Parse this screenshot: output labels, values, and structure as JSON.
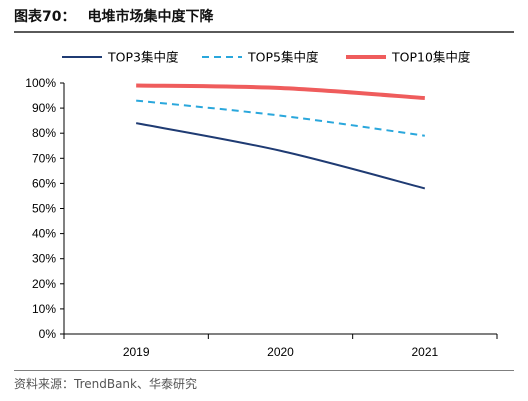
{
  "figure": {
    "number": "图表70：",
    "title": "电堆市场集中度下降",
    "source": "资料来源：TrendBank、华泰研究"
  },
  "chart_data": {
    "type": "line",
    "title": "电堆市场集中度下降",
    "xlabel": "",
    "ylabel": "",
    "categories": [
      "2019",
      "2020",
      "2021"
    ],
    "y_ticks": [
      "0%",
      "10%",
      "20%",
      "30%",
      "40%",
      "50%",
      "60%",
      "70%",
      "80%",
      "90%",
      "100%"
    ],
    "ylim": [
      0,
      100
    ],
    "grid": false,
    "legend_position": "top",
    "series": [
      {
        "name": "TOP3集中度",
        "values": [
          84,
          73,
          58
        ],
        "color": "#1f3b73",
        "style": "solid",
        "width": 2
      },
      {
        "name": "TOP5集中度",
        "values": [
          93,
          87,
          79
        ],
        "color": "#2aa7dc",
        "style": "dashed",
        "width": 2
      },
      {
        "name": "TOP10集中度",
        "values": [
          99,
          98,
          94
        ],
        "color": "#ef5c5c",
        "style": "solid",
        "width": 4
      }
    ]
  }
}
